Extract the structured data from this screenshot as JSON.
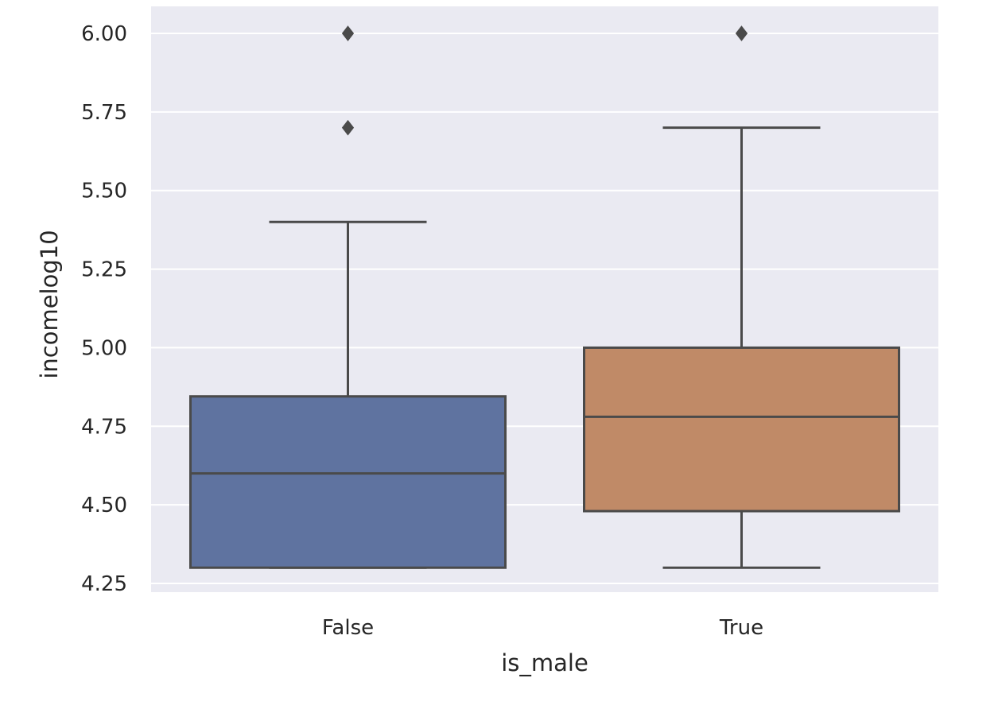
{
  "chart_data": {
    "type": "box",
    "xlabel": "is_male",
    "ylabel": "incomelog10",
    "categories": [
      "False",
      "True"
    ],
    "ylim": [
      4.22,
      6.08
    ],
    "yticks": [
      {
        "value": 4.25,
        "label": "4.25"
      },
      {
        "value": 4.5,
        "label": "4.50"
      },
      {
        "value": 4.75,
        "label": "4.75"
      },
      {
        "value": 5.0,
        "label": "5.00"
      },
      {
        "value": 5.25,
        "label": "5.25"
      },
      {
        "value": 5.5,
        "label": "5.50"
      },
      {
        "value": 5.75,
        "label": "5.75"
      },
      {
        "value": 6.0,
        "label": "6.00"
      }
    ],
    "grid": true,
    "boxes": [
      {
        "category": "False",
        "whisker_low": 4.3,
        "q1": 4.3,
        "median": 4.6,
        "q3": 4.845,
        "whisker_high": 5.4,
        "outliers": [
          5.7,
          6.0
        ],
        "color": "#5f73a0"
      },
      {
        "category": "True",
        "whisker_low": 4.3,
        "q1": 4.48,
        "median": 4.78,
        "q3": 5.0,
        "whisker_high": 5.7,
        "outliers": [
          6.0
        ],
        "color": "#c08a67"
      }
    ],
    "background": "#eaeaf2",
    "grid_color": "#ffffff",
    "line_color": "#4a4a4a"
  }
}
